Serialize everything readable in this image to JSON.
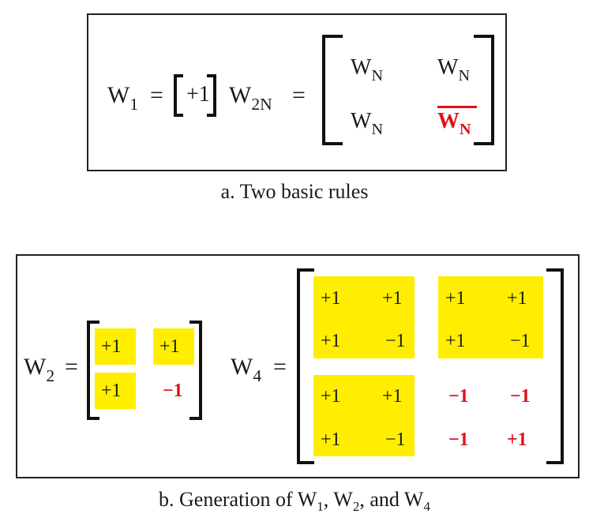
{
  "panel_a": {
    "w1": {
      "base": "W",
      "sub": "1"
    },
    "eq": "=",
    "w1_value": "+1",
    "w2n": {
      "base": "W",
      "sub": "2N"
    },
    "matrix": [
      {
        "base": "W",
        "sub": "N"
      },
      {
        "base": "W",
        "sub": "N"
      },
      {
        "base": "W",
        "sub": "N"
      },
      {
        "base": "W",
        "sub": "N",
        "overline": true
      }
    ],
    "caption": "a. Two basic rules"
  },
  "panel_b": {
    "w2": {
      "base": "W",
      "sub": "2"
    },
    "w2_values": [
      "+1",
      "+1",
      "+1",
      "−1"
    ],
    "w4": {
      "base": "W",
      "sub": "4"
    },
    "w4_values": [
      [
        "+1",
        "+1",
        "+1",
        "+1"
      ],
      [
        "+1",
        "−1",
        "+1",
        "−1"
      ],
      [
        "+1",
        "+1",
        "−1",
        "−1"
      ],
      [
        "+1",
        "−1",
        "−1",
        "+1"
      ]
    ],
    "eq": "=",
    "caption": {
      "prefix": "b. Generation of ",
      "t1": "W",
      "s1": "1",
      "sep1": ", ",
      "t2": "W",
      "s2": "2",
      "sep2": ", and ",
      "t3": "W",
      "s3": "4"
    }
  },
  "colors": {
    "highlight": "#ffee00",
    "negative": "#e0101a",
    "stroke": "#222222"
  }
}
